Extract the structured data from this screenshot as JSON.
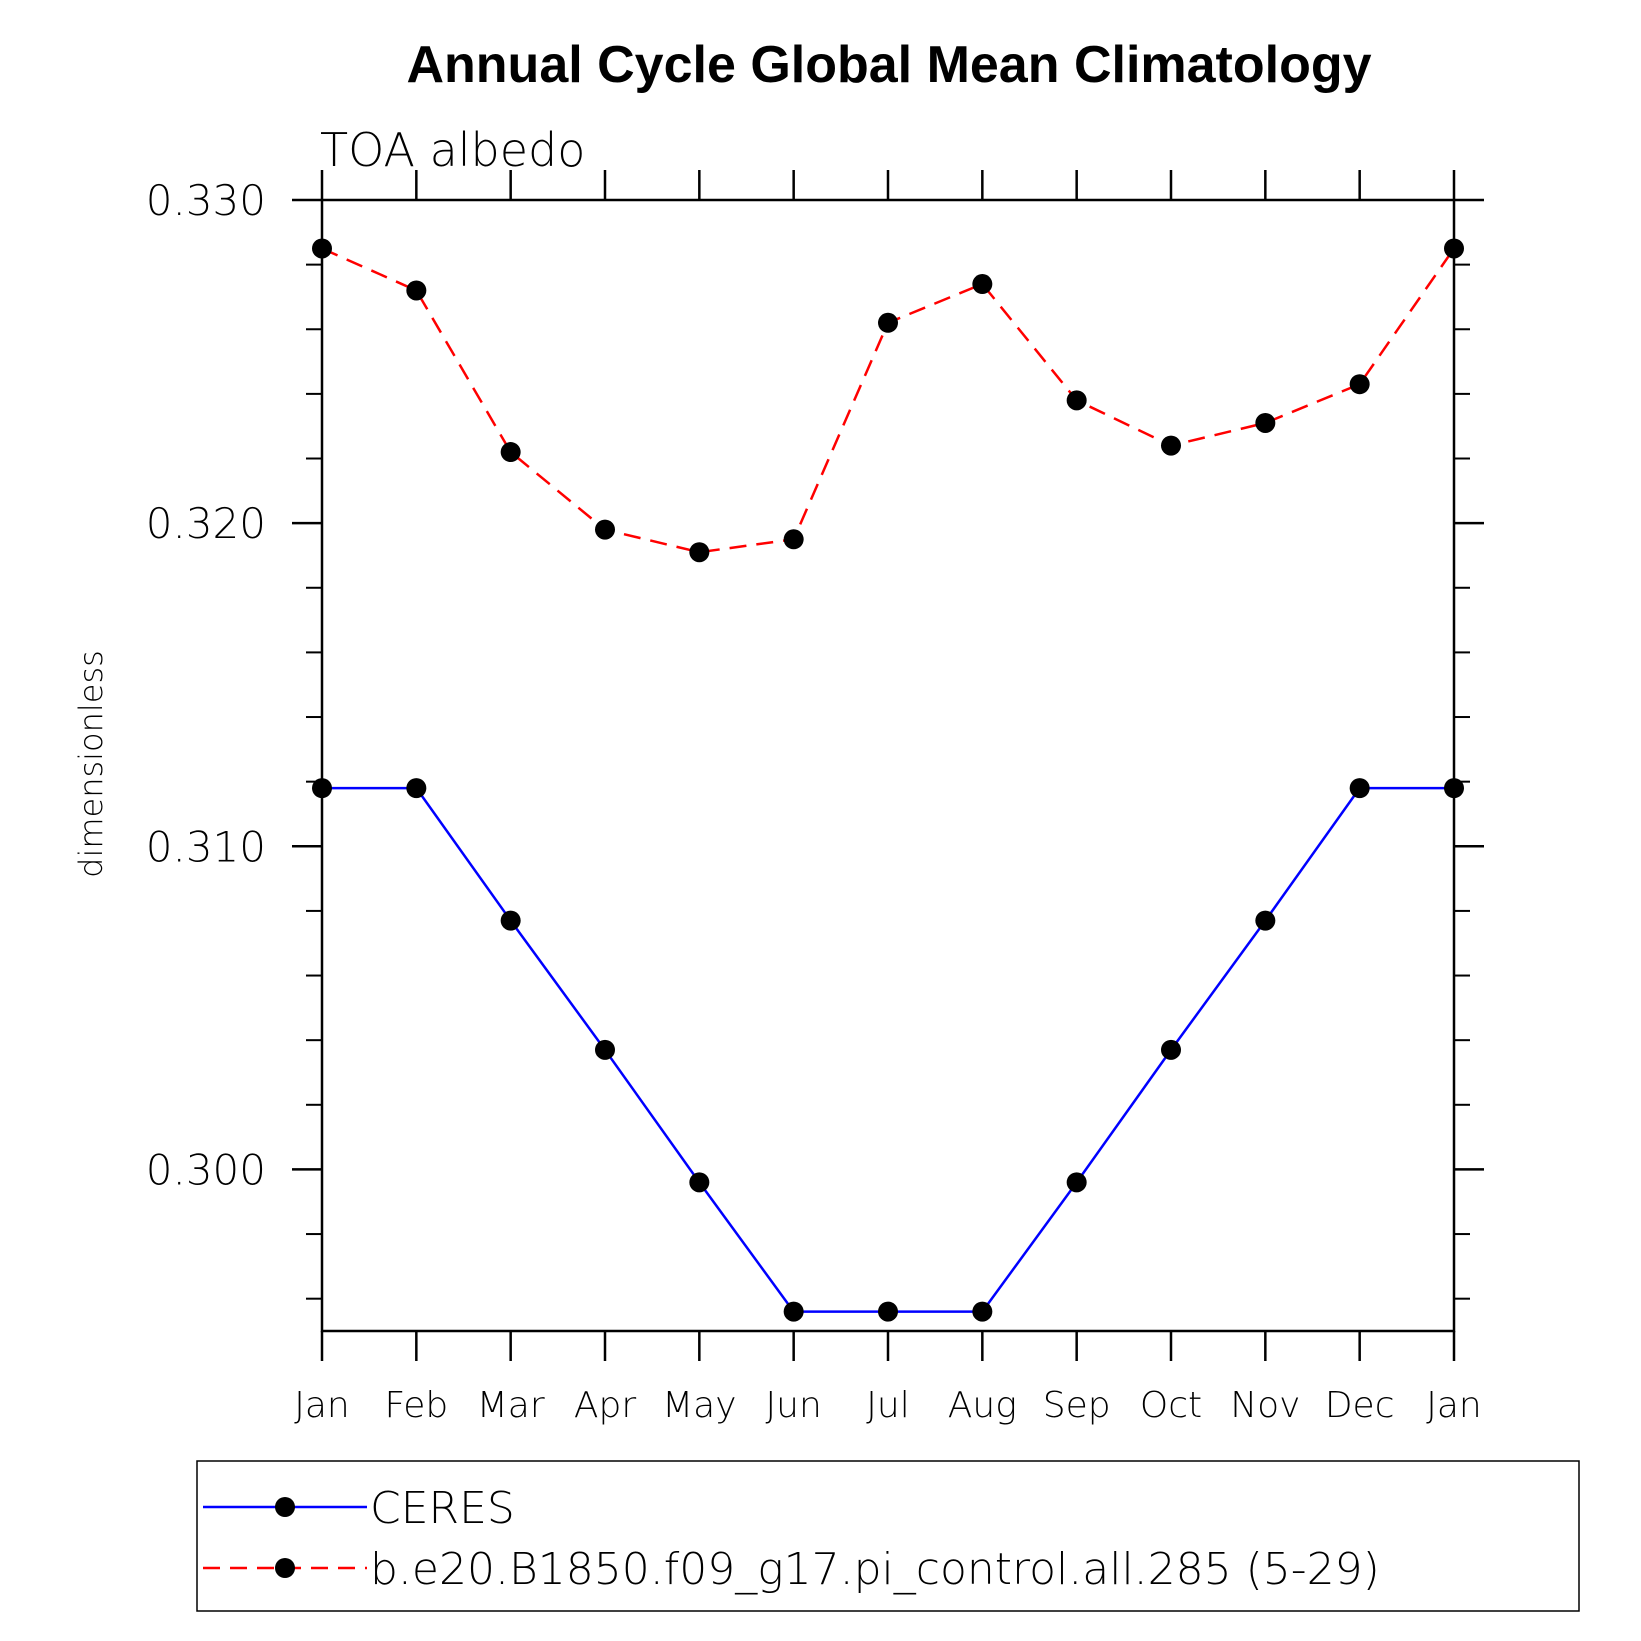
{
  "chart_data": {
    "type": "line",
    "title": "Annual Cycle Global Mean Climatology",
    "subtitle": "TOA albedo",
    "ylabel": "dimensionless",
    "xlabel": "",
    "categories": [
      "Jan",
      "Feb",
      "Mar",
      "Apr",
      "May",
      "Jun",
      "Jul",
      "Aug",
      "Sep",
      "Oct",
      "Nov",
      "Dec",
      "Jan"
    ],
    "ylim": [
      0.295,
      0.33
    ],
    "yticks": [
      0.3,
      0.31,
      0.32,
      0.33
    ],
    "ytick_labels": [
      "0.300",
      "0.310",
      "0.320",
      "0.330"
    ],
    "grid": false,
    "legend_position": "bottom",
    "series": [
      {
        "name": "CERES",
        "color": "#0000ff",
        "style": "solid",
        "marker": "circle",
        "values": [
          0.3118,
          0.3118,
          0.3077,
          0.3037,
          0.2996,
          0.2956,
          0.2956,
          0.2956,
          0.2996,
          0.3037,
          0.3077,
          0.3118,
          0.3118
        ]
      },
      {
        "name": "b.e20.B1850.f09_g17.pi_control.all.285 (5-29)",
        "color": "#ff0000",
        "style": "dashed",
        "marker": "circle",
        "values": [
          0.3285,
          0.3272,
          0.3222,
          0.3198,
          0.3191,
          0.3195,
          0.3262,
          0.3274,
          0.3238,
          0.3224,
          0.3231,
          0.3243,
          0.3285
        ]
      }
    ]
  }
}
